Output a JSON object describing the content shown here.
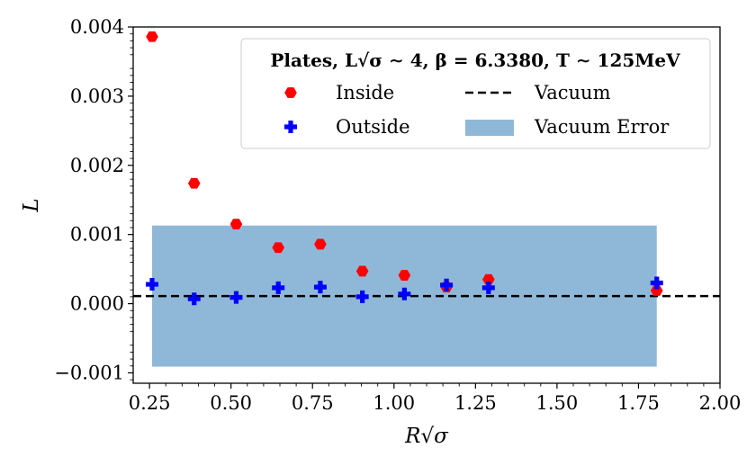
{
  "chart_data": {
    "type": "scatter",
    "title": "Plates, L√σ ∼ 4, β = 6.3380, T ∼ 125MeV",
    "xlabel": "R√σ",
    "ylabel": "L",
    "xlim": [
      0.2,
      2.0
    ],
    "ylim": [
      -0.00115,
      0.004
    ],
    "x_ticks": [
      0.25,
      0.5,
      0.75,
      1.0,
      1.25,
      1.5,
      1.75,
      2.0
    ],
    "x_tick_labels": [
      "0.25",
      "0.50",
      "0.75",
      "1.00",
      "1.25",
      "1.50",
      "1.75",
      "2.00"
    ],
    "y_ticks": [
      -0.001,
      0.0,
      0.001,
      0.002,
      0.003,
      0.004
    ],
    "y_tick_labels": [
      "−0.001",
      "0.000",
      "0.001",
      "0.002",
      "0.003",
      "0.004"
    ],
    "grid": false,
    "legend_position": "top-right",
    "series": [
      {
        "name": "Inside",
        "marker": "hexagon",
        "color": "#ff0000",
        "x": [
          0.258,
          0.387,
          0.516,
          0.645,
          0.774,
          0.903,
          1.032,
          1.161,
          1.29,
          1.806
        ],
        "y": [
          0.00386,
          0.00174,
          0.00115,
          0.00081,
          0.00086,
          0.00047,
          0.00041,
          0.00024,
          0.00035,
          0.00019
        ]
      },
      {
        "name": "Outside",
        "marker": "plus",
        "color": "#0000ff",
        "x": [
          0.258,
          0.387,
          0.516,
          0.645,
          0.774,
          0.903,
          1.032,
          1.161,
          1.29,
          1.806
        ],
        "y": [
          0.00028,
          7e-05,
          9e-05,
          0.00023,
          0.00024,
          0.0001,
          0.00014,
          0.00027,
          0.00023,
          0.0003
        ]
      }
    ],
    "vacuum": {
      "name": "Vacuum",
      "value": 0.00011,
      "style": "dashed",
      "color": "#000000"
    },
    "vacuum_error": {
      "name": "Vacuum Error",
      "x_range": [
        0.258,
        1.806
      ],
      "y_range": [
        -0.00091,
        0.00113
      ],
      "color": "#8fb8d8"
    }
  }
}
